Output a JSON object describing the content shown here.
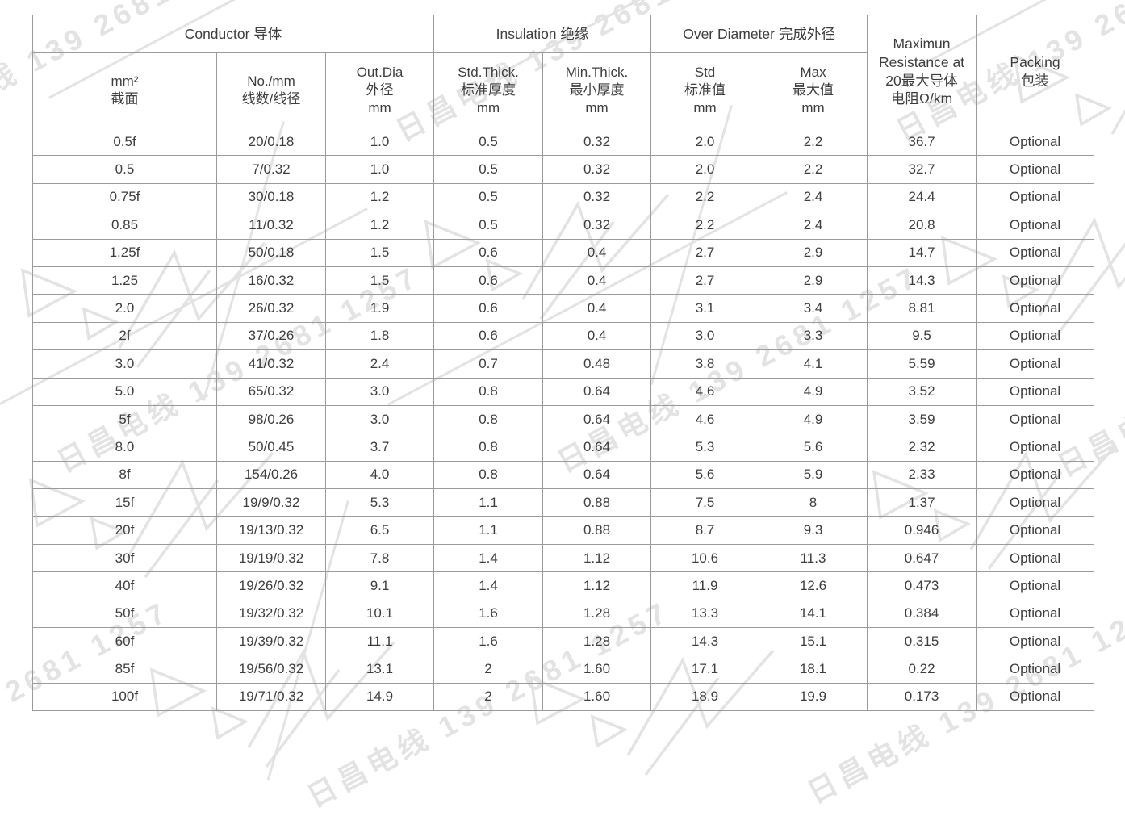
{
  "watermark": {
    "text": "日昌电线 139 2681 1257"
  },
  "table": {
    "group_headers": [
      {
        "label": "Conductor 导体"
      },
      {
        "label": "Insulation 绝缘"
      },
      {
        "label": "Over Diameter 完成外径"
      }
    ],
    "merged_headers": {
      "resistance": "Maximun\nResistance at\n20最大导体\n电阻Ω/km",
      "packing": "Packing\n包装"
    },
    "column_headers": [
      "mm²\n截面",
      "No./mm\n线数/线径",
      "Out.Dia\n外径\nmm",
      "Std.Thick.\n标准厚度\nmm",
      "Min.Thick.\n最小厚度\nmm",
      "Std\n标准值\nmm",
      "Max\n最大值\nmm"
    ],
    "rows": [
      [
        "0.5f",
        "20/0.18",
        "1.0",
        "0.5",
        "0.32",
        "2.0",
        "2.2",
        "36.7",
        "Optional"
      ],
      [
        "0.5",
        "7/0.32",
        "1.0",
        "0.5",
        "0.32",
        "2.0",
        "2.2",
        "32.7",
        "Optional"
      ],
      [
        "0.75f",
        "30/0.18",
        "1.2",
        "0.5",
        "0.32",
        "2.2",
        "2.4",
        "24.4",
        "Optional"
      ],
      [
        "0.85",
        "11/0.32",
        "1.2",
        "0.5",
        "0.32",
        "2.2",
        "2.4",
        "20.8",
        "Optional"
      ],
      [
        "1.25f",
        "50/0.18",
        "1.5",
        "0.6",
        "0.4",
        "2.7",
        "2.9",
        "14.7",
        "Optional"
      ],
      [
        "1.25",
        "16/0.32",
        "1.5",
        "0.6",
        "0.4",
        "2.7",
        "2.9",
        "14.3",
        "Optional"
      ],
      [
        "2.0",
        "26/0.32",
        "1.9",
        "0.6",
        "0.4",
        "3.1",
        "3.4",
        "8.81",
        "Optional"
      ],
      [
        "2f",
        "37/0.26",
        "1.8",
        "0.6",
        "0.4",
        "3.0",
        "3.3",
        "9.5",
        "Optional"
      ],
      [
        "3.0",
        "41/0.32",
        "2.4",
        "0.7",
        "0.48",
        "3.8",
        "4.1",
        "5.59",
        "Optional"
      ],
      [
        "5.0",
        "65/0.32",
        "3.0",
        "0.8",
        "0.64",
        "4.6",
        "4.9",
        "3.52",
        "Optional"
      ],
      [
        "5f",
        "98/0.26",
        "3.0",
        "0.8",
        "0.64",
        "4.6",
        "4.9",
        "3.59",
        "Optional"
      ],
      [
        "8.0",
        "50/0.45",
        "3.7",
        "0.8",
        "0.64",
        "5.3",
        "5.6",
        "2.32",
        "Optional"
      ],
      [
        "8f",
        "154/0.26",
        "4.0",
        "0.8",
        "0.64",
        "5.6",
        "5.9",
        "2.33",
        "Optional"
      ],
      [
        "15f",
        "19/9/0.32",
        "5.3",
        "1.1",
        "0.88",
        "7.5",
        "8",
        "1.37",
        "Optional"
      ],
      [
        "20f",
        "19/13/0.32",
        "6.5",
        "1.1",
        "0.88",
        "8.7",
        "9.3",
        "0.946",
        "Optional"
      ],
      [
        "30f",
        "19/19/0.32",
        "7.8",
        "1.4",
        "1.12",
        "10.6",
        "11.3",
        "0.647",
        "Optional"
      ],
      [
        "40f",
        "19/26/0.32",
        "9.1",
        "1.4",
        "1.12",
        "11.9",
        "12.6",
        "0.473",
        "Optional"
      ],
      [
        "50f",
        "19/32/0.32",
        "10.1",
        "1.6",
        "1.28",
        "13.3",
        "14.1",
        "0.384",
        "Optional"
      ],
      [
        "60f",
        "19/39/0.32",
        "11.1",
        "1.6",
        "1.28",
        "14.3",
        "15.1",
        "0.315",
        "Optional"
      ],
      [
        "85f",
        "19/56/0.32",
        "13.1",
        "2",
        "1.60",
        "17.1",
        "18.1",
        "0.22",
        "Optional"
      ],
      [
        "100f",
        "19/71/0.32",
        "14.9",
        "2",
        "1.60",
        "18.9",
        "19.9",
        "0.173",
        "Optional"
      ]
    ],
    "colors": {
      "border": "#9b9b9b",
      "text": "#3e3e3e",
      "watermark": "#e3e3e3"
    }
  }
}
